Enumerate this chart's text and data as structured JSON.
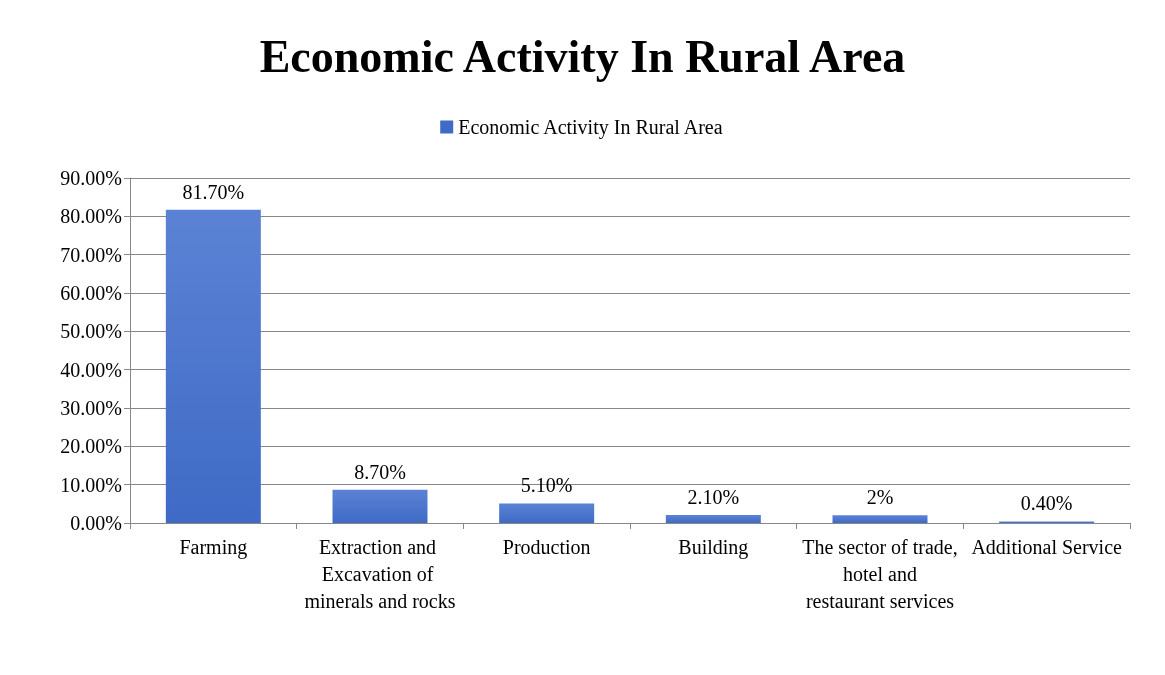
{
  "chart_data": {
    "type": "bar",
    "title": "Economic Activity In Rural Area",
    "categories": [
      "Farming",
      "Extraction and Excavation of minerals and rocks",
      "Production",
      "Building",
      "The sector of trade, hotel and restaurant services",
      "Additional Service"
    ],
    "series": [
      {
        "name": "Economic Activity In Rural Area",
        "color": "#3f6bc6",
        "values": [
          81.7,
          8.7,
          5.1,
          2.1,
          2,
          0.4
        ],
        "value_labels": [
          "81.70%",
          "8.70%",
          "5.10%",
          "2.10%",
          "2%",
          "0.40%"
        ]
      }
    ],
    "ylim": [
      0,
      90
    ],
    "yticks": [
      {
        "value": 0,
        "label": "0.00%"
      },
      {
        "value": 10,
        "label": "10.00%"
      },
      {
        "value": 20,
        "label": "20.00%"
      },
      {
        "value": 30,
        "label": "30.00%"
      },
      {
        "value": 40,
        "label": "40.00%"
      },
      {
        "value": 50,
        "label": "50.00%"
      },
      {
        "value": 60,
        "label": "60.00%"
      },
      {
        "value": 70,
        "label": "70.00%"
      },
      {
        "value": 80,
        "label": "80.00%"
      },
      {
        "value": 90,
        "label": "90.00%"
      }
    ],
    "grid": "y",
    "legend": "top"
  }
}
